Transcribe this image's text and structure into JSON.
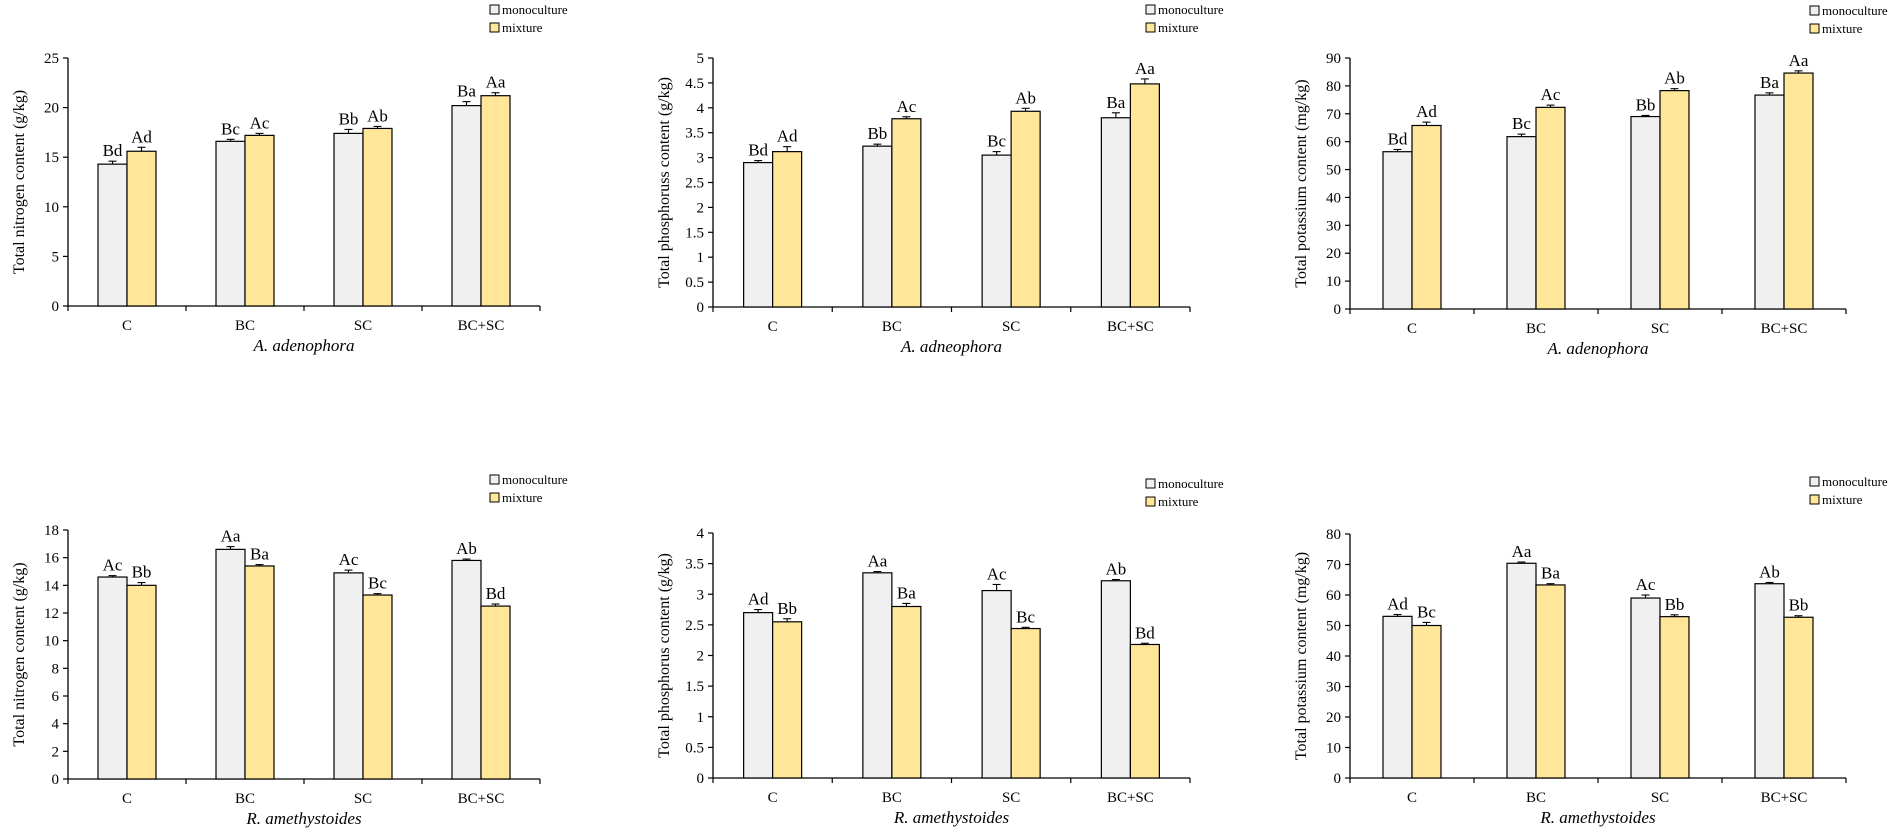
{
  "colors": {
    "monoculture": "#f0f0f0",
    "mixture": "#ffe699",
    "stroke": "#000000",
    "axis": "#000000"
  },
  "legend": {
    "monoculture": "monoculture",
    "mixture": "mixture"
  },
  "chart_data": [
    {
      "type": "bar",
      "ylabel": "Total nitrogen content (g/kg)",
      "xlabel": "A. adenophora",
      "categories": [
        "C",
        "BC",
        "SC",
        "BC+SC"
      ],
      "ylim": [
        0,
        25
      ],
      "yticks": [
        0,
        5,
        10,
        15,
        20,
        25
      ],
      "series": [
        {
          "name": "monoculture",
          "values": [
            14.3,
            16.6,
            17.4,
            20.2
          ],
          "errors": [
            0.3,
            0.2,
            0.4,
            0.4
          ],
          "labels": [
            "Bd",
            "Bc",
            "Bb",
            "Ba"
          ]
        },
        {
          "name": "mixture",
          "values": [
            15.6,
            17.2,
            17.9,
            21.2
          ],
          "errors": [
            0.4,
            0.2,
            0.2,
            0.3
          ],
          "labels": [
            "Ad",
            "Ac",
            "Ab",
            "Aa"
          ]
        }
      ]
    },
    {
      "type": "bar",
      "ylabel": "Total phosphoruss content (g/kg)",
      "xlabel": "A. adneophora",
      "categories": [
        "C",
        "BC",
        "SC",
        "BC+SC"
      ],
      "ylim": [
        0,
        5
      ],
      "yticks": [
        0,
        0.5,
        1,
        1.5,
        2,
        2.5,
        3,
        3.5,
        4,
        4.5,
        5
      ],
      "series": [
        {
          "name": "monoculture",
          "values": [
            2.9,
            3.23,
            3.05,
            3.8
          ],
          "errors": [
            0.04,
            0.04,
            0.07,
            0.1
          ],
          "labels": [
            "Bd",
            "Bb",
            "Bc",
            "Ba"
          ]
        },
        {
          "name": "mixture",
          "values": [
            3.12,
            3.78,
            3.93,
            4.48
          ],
          "errors": [
            0.1,
            0.04,
            0.06,
            0.1
          ],
          "labels": [
            "Ad",
            "Ac",
            "Ab",
            "Aa"
          ]
        }
      ]
    },
    {
      "type": "bar",
      "ylabel": "Total potassium content (mg/kg)",
      "xlabel": "A. adenophora",
      "categories": [
        "C",
        "BC",
        "SC",
        "BC+SC"
      ],
      "ylim": [
        0,
        90
      ],
      "yticks": [
        0,
        10,
        20,
        30,
        40,
        50,
        60,
        70,
        80,
        90
      ],
      "series": [
        {
          "name": "monoculture",
          "values": [
            56.4,
            61.8,
            69.0,
            76.7
          ],
          "errors": [
            0.8,
            0.9,
            0.4,
            0.8
          ],
          "labels": [
            "Bd",
            "Bc",
            "Bb",
            "Ba"
          ]
        },
        {
          "name": "mixture",
          "values": [
            65.8,
            72.3,
            78.3,
            84.6
          ],
          "errors": [
            1.2,
            0.8,
            0.7,
            0.8
          ],
          "labels": [
            "Ad",
            "Ac",
            "Ab",
            "Aa"
          ]
        }
      ]
    },
    {
      "type": "bar",
      "ylabel": "Total nitrogen content (g/kg)",
      "xlabel": "R. amethystoides",
      "categories": [
        "C",
        "BC",
        "SC",
        "BC+SC"
      ],
      "ylim": [
        0,
        18
      ],
      "yticks": [
        0,
        2,
        4,
        6,
        8,
        10,
        12,
        14,
        16,
        18
      ],
      "series": [
        {
          "name": "monoculture",
          "values": [
            14.6,
            16.6,
            14.9,
            15.8
          ],
          "errors": [
            0.1,
            0.2,
            0.2,
            0.1
          ],
          "labels": [
            "Ac",
            "Aa",
            "Ac",
            "Ab"
          ]
        },
        {
          "name": "mixture",
          "values": [
            14.0,
            15.4,
            13.3,
            12.5
          ],
          "errors": [
            0.2,
            0.1,
            0.1,
            0.15
          ],
          "labels": [
            "Bb",
            "Ba",
            "Bc",
            "Bd"
          ]
        }
      ]
    },
    {
      "type": "bar",
      "ylabel": "Total phosphorus content (g/kg)",
      "xlabel": "R. amethystoides",
      "categories": [
        "C",
        "BC",
        "SC",
        "BC+SC"
      ],
      "ylim": [
        0,
        4
      ],
      "yticks": [
        0,
        0.5,
        1,
        1.5,
        2,
        2.5,
        3,
        3.5,
        4
      ],
      "series": [
        {
          "name": "monoculture",
          "values": [
            2.7,
            3.35,
            3.06,
            3.22
          ],
          "errors": [
            0.05,
            0.02,
            0.1,
            0.02
          ],
          "labels": [
            "Ad",
            "Aa",
            "Ac",
            "Ab"
          ]
        },
        {
          "name": "mixture",
          "values": [
            2.55,
            2.8,
            2.44,
            2.18
          ],
          "errors": [
            0.05,
            0.05,
            0.02,
            0.02
          ],
          "labels": [
            "Bb",
            "Ba",
            "Bc",
            "Bd"
          ]
        }
      ]
    },
    {
      "type": "bar",
      "ylabel": "Total potassium content (mg/kg)",
      "xlabel": "R. amethystoides",
      "categories": [
        "C",
        "BC",
        "SC",
        "BC+SC"
      ],
      "ylim": [
        0,
        80
      ],
      "yticks": [
        0,
        10,
        20,
        30,
        40,
        50,
        60,
        70,
        80
      ],
      "series": [
        {
          "name": "monoculture",
          "values": [
            53.0,
            70.4,
            59.0,
            63.7
          ],
          "errors": [
            0.6,
            0.4,
            1.0,
            0.4
          ],
          "labels": [
            "Ad",
            "Aa",
            "Ac",
            "Ab"
          ]
        },
        {
          "name": "mixture",
          "values": [
            50.0,
            63.3,
            52.9,
            52.7
          ],
          "errors": [
            1.0,
            0.4,
            0.6,
            0.5
          ],
          "labels": [
            "Bc",
            "Ba",
            "Bb",
            "Bb"
          ]
        }
      ]
    }
  ]
}
